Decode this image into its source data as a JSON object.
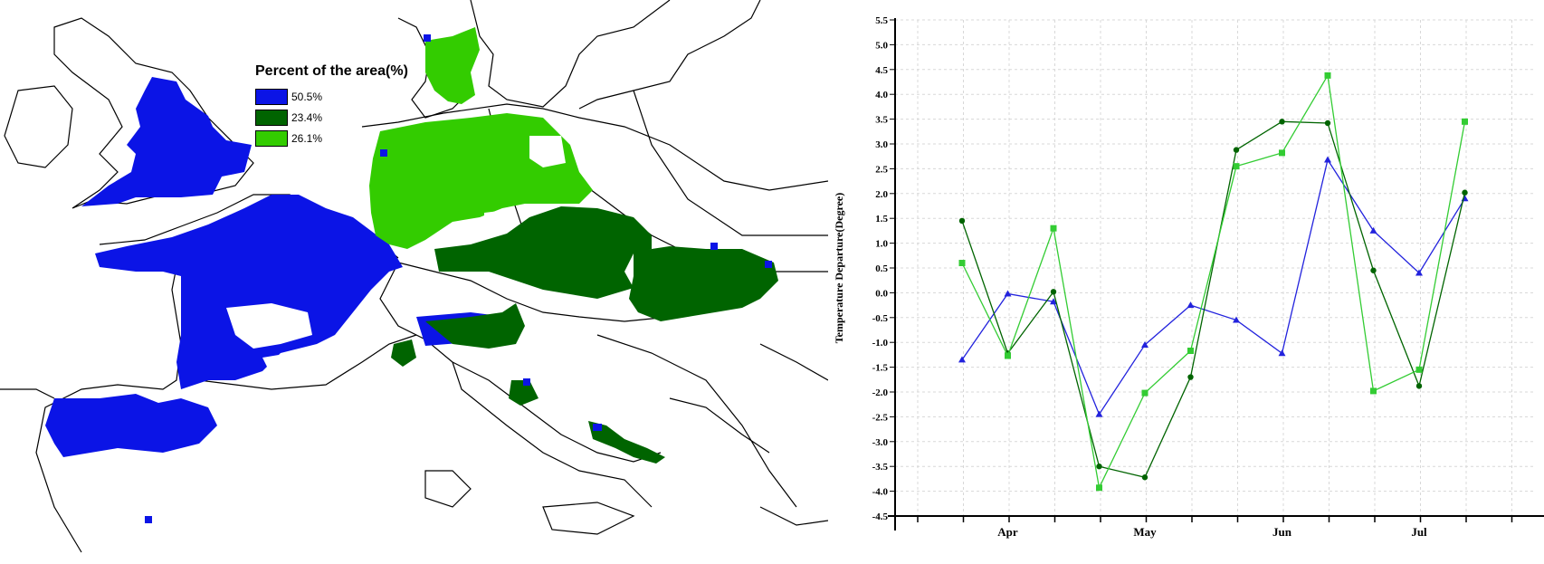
{
  "map": {
    "legend": {
      "title": "Percent of the area(%)",
      "entries": [
        {
          "label": "50.5%",
          "color": "#0b14e6"
        },
        {
          "label": "23.4%",
          "color": "#006400"
        },
        {
          "label": "26.1%",
          "color": "#33cc00"
        }
      ]
    }
  },
  "chart_data": {
    "type": "line",
    "ylabel": "Temperature Departure(Degree)",
    "xlabel": "",
    "ylim": [
      -4.5,
      5.5
    ],
    "yticks": [
      5.5,
      5.0,
      4.5,
      4.0,
      3.5,
      3.0,
      2.5,
      2.0,
      1.5,
      1.0,
      0.5,
      0.0,
      -0.5,
      -1.0,
      -1.5,
      -2.0,
      -2.5,
      -3.0,
      -3.5,
      -4.0,
      -4.5
    ],
    "month_labels": [
      "Apr",
      "May",
      "Jun",
      "Jul"
    ],
    "grid": true,
    "series": [
      {
        "color": "#2222dd",
        "marker": "triangle",
        "values": [
          -1.35,
          -0.02,
          -0.18,
          -2.45,
          -1.05,
          -0.25,
          -0.55,
          -1.22,
          2.68,
          1.25,
          0.4,
          1.9
        ]
      },
      {
        "color": "#006400",
        "marker": "circle",
        "values": [
          1.45,
          -1.22,
          0.02,
          -3.5,
          -3.72,
          -1.7,
          2.88,
          3.45,
          3.42,
          0.45,
          -1.88,
          2.02
        ]
      },
      {
        "color": "#33cc33",
        "marker": "square",
        "values": [
          0.6,
          -1.27,
          1.3,
          -3.93,
          -2.02,
          -1.17,
          2.55,
          2.82,
          4.38,
          -1.98,
          -1.55,
          3.45
        ]
      }
    ]
  }
}
